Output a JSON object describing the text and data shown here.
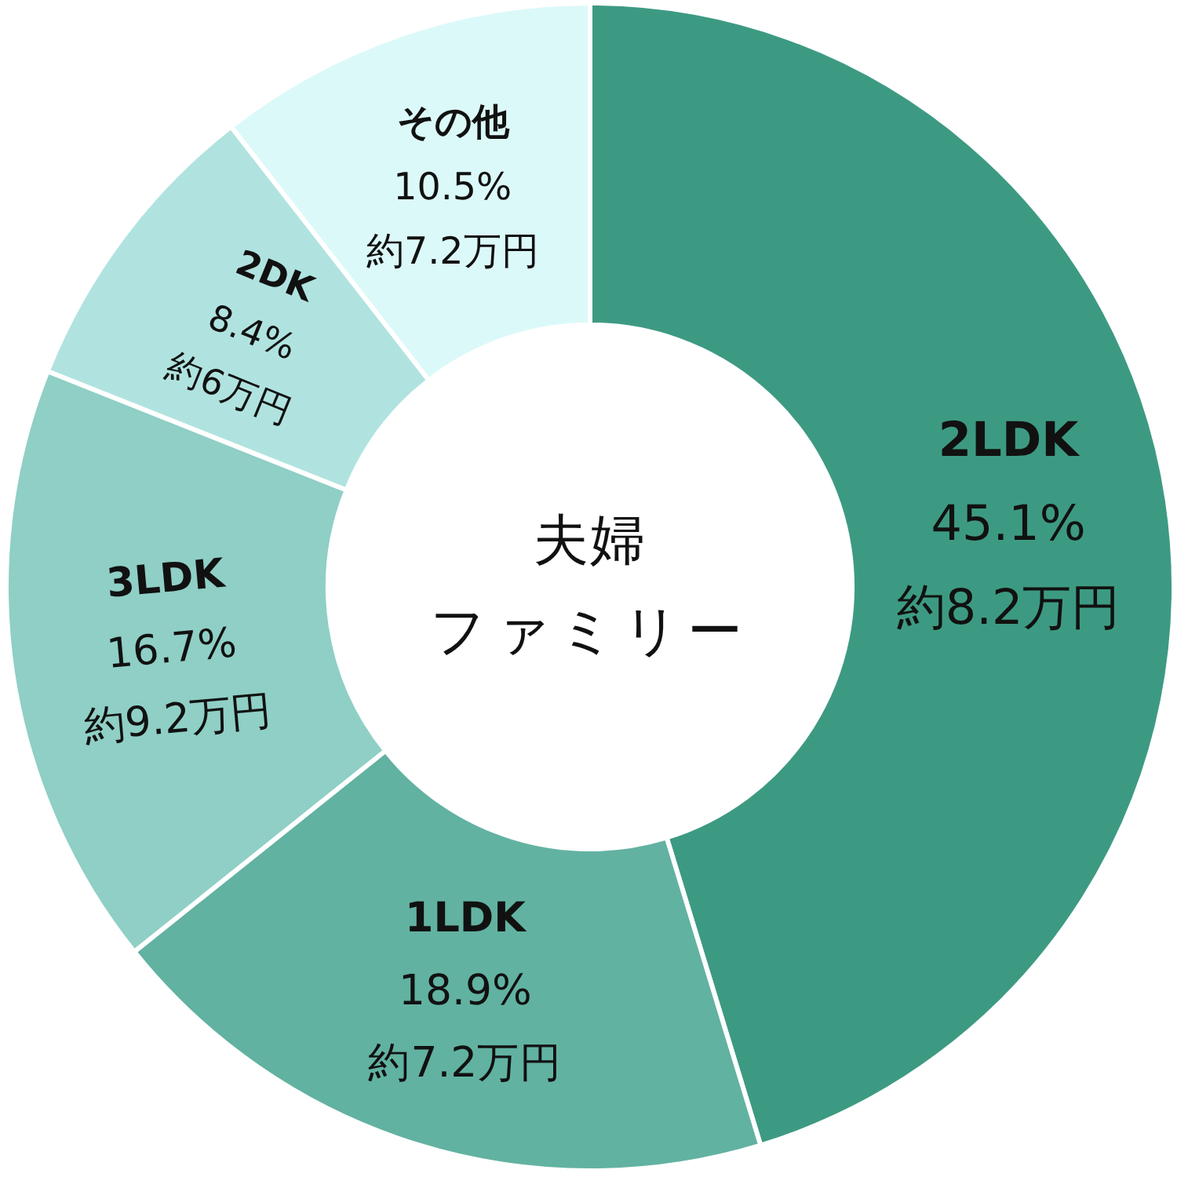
{
  "chart_data": {
    "type": "donut",
    "title": "夫婦ファミリー",
    "categories": [
      "2LDK",
      "1LDK",
      "3LDK",
      "2DK",
      "その他"
    ],
    "values": [
      45.1,
      18.9,
      16.7,
      8.4,
      10.5
    ],
    "colors": [
      "#3d9a82",
      "#62b2a1",
      "#8fcfc5",
      "#b0e3df",
      "#dcf9f9"
    ],
    "value_labels": [
      "45.1%",
      "18.9%",
      "16.7%",
      "8.4%",
      "10.5%"
    ],
    "annotations": [
      {
        "text": "約8.2万円",
        "x": "2LDK"
      },
      {
        "text": "約7.2万円",
        "x": "1LDK"
      },
      {
        "text": "約9.2万円",
        "x": "3LDK"
      },
      {
        "text": "約6万円",
        "x": "2DK"
      },
      {
        "text": "約7.2万円",
        "x": "その他"
      }
    ]
  }
}
